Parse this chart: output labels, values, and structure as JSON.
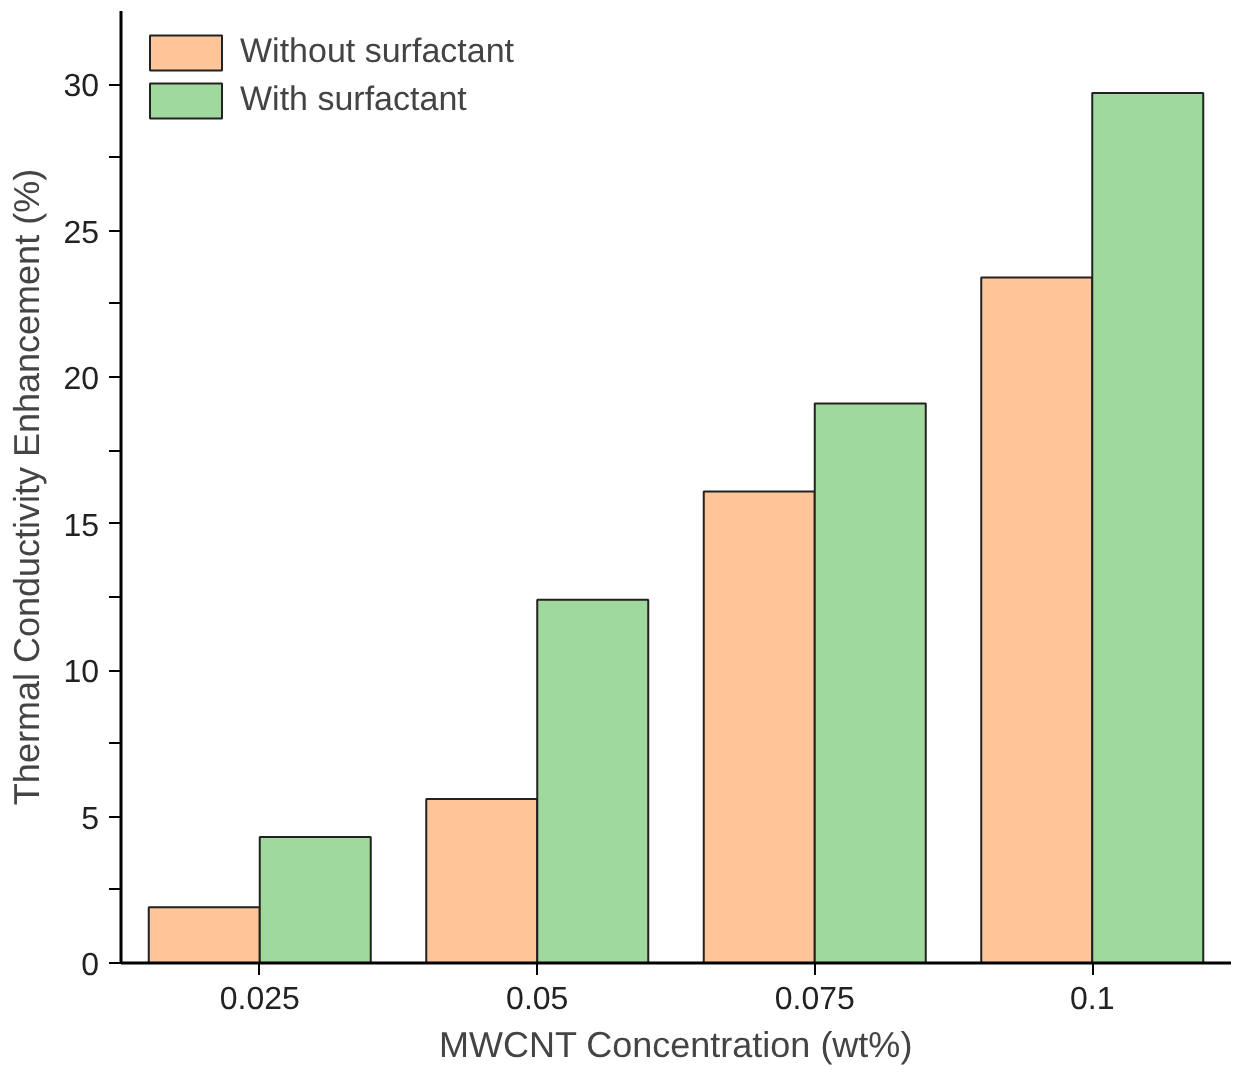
{
  "chart_data": {
    "type": "bar",
    "xlabel": "MWCNT Concentration (wt%)",
    "ylabel": "Thermal Conductivity Enhancement (%)",
    "categories": [
      "0.025",
      "0.05",
      "0.075",
      "0.1"
    ],
    "series": [
      {
        "name": "Without surfactant",
        "color": "#fdc598",
        "values": [
          1.9,
          5.6,
          16.1,
          23.4
        ]
      },
      {
        "name": "With surfactant",
        "color": "#a0d99d",
        "values": [
          4.3,
          12.4,
          19.1,
          29.7
        ]
      }
    ],
    "ylim": [
      0,
      32.5
    ],
    "yticks": [
      0,
      {
        "value": 2.5,
        "label": null
      },
      5,
      {
        "value": 7.5,
        "label": null
      },
      10,
      {
        "value": 12.5,
        "label": null
      },
      15,
      {
        "value": 17.5,
        "label": null
      },
      20,
      {
        "value": 22.5,
        "label": null
      },
      25,
      {
        "value": 27.5,
        "label": null
      },
      30
    ],
    "grid": false,
    "legend": "top left"
  }
}
